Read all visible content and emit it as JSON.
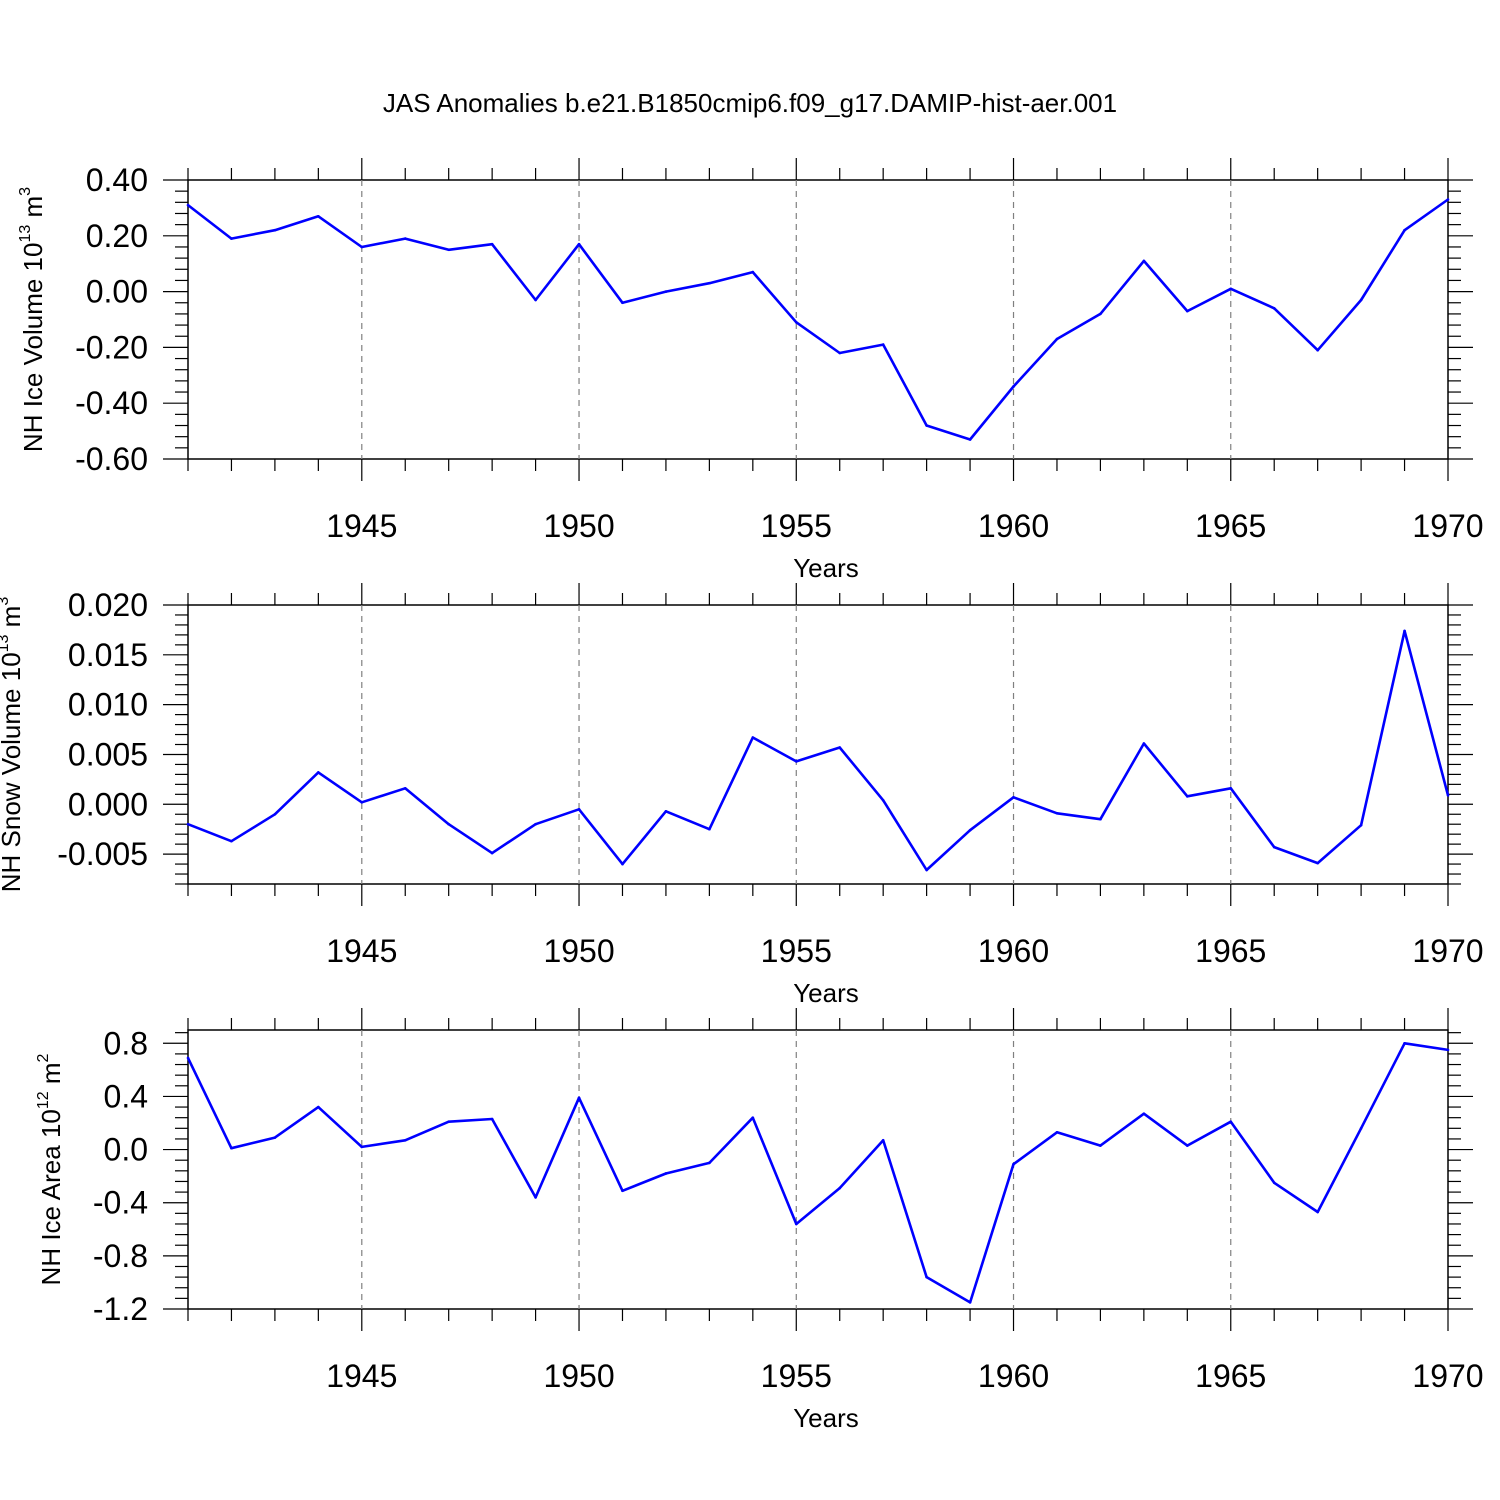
{
  "title": "JAS Anomalies b.e21.B1850cmip6.f09_g17.DAMIP-hist-aer.001",
  "colors": {
    "series": "#0000ff",
    "axes": "#000000",
    "grid": "#808080"
  },
  "chart_data": [
    {
      "type": "line",
      "name": "ice-volume",
      "title": "JAS Anomalies b.e21.B1850cmip6.f09_g17.DAMIP-hist-aer.001",
      "ylabel": "NH Ice Volume 10",
      "ylabel_sup": "13",
      "ylabel_unit": "m",
      "ylabel_unit_sup": "3",
      "xlabel": "Years",
      "xlim": [
        1941,
        1970
      ],
      "ylim": [
        -0.6,
        0.4
      ],
      "xticks": [
        1945,
        1950,
        1955,
        1960,
        1965,
        1970
      ],
      "xtick_labels": [
        "1945",
        "1950",
        "1955",
        "1960",
        "1965",
        "1970"
      ],
      "yticks": [
        0.4,
        0.2,
        0.0,
        -0.2,
        -0.4,
        -0.6
      ],
      "ytick_labels": [
        "0.40",
        "0.20",
        "0.00",
        "-0.20",
        "-0.40",
        "-0.60"
      ],
      "grid": "vertical dashed at major x ticks",
      "x": [
        1941,
        1942,
        1943,
        1944,
        1945,
        1946,
        1947,
        1948,
        1949,
        1950,
        1951,
        1952,
        1953,
        1954,
        1955,
        1956,
        1957,
        1958,
        1959,
        1960,
        1961,
        1962,
        1963,
        1964,
        1965,
        1966,
        1967,
        1968,
        1969,
        1970
      ],
      "values": [
        0.31,
        0.19,
        0.22,
        0.27,
        0.16,
        0.19,
        0.15,
        0.17,
        -0.03,
        0.17,
        -0.04,
        0.0,
        0.03,
        0.07,
        -0.11,
        -0.22,
        -0.19,
        -0.48,
        -0.53,
        -0.34,
        -0.17,
        -0.08,
        0.11,
        -0.07,
        0.01,
        -0.06,
        -0.21,
        -0.03,
        0.22,
        0.33
      ]
    },
    {
      "type": "line",
      "name": "snow-volume",
      "ylabel": "NH Snow Volume 10",
      "ylabel_sup": "13",
      "ylabel_unit": "m",
      "ylabel_unit_sup": "3",
      "xlabel": "Years",
      "xlim": [
        1941,
        1970
      ],
      "ylim": [
        -0.008,
        0.02
      ],
      "xticks": [
        1945,
        1950,
        1955,
        1960,
        1965,
        1970
      ],
      "xtick_labels": [
        "1945",
        "1950",
        "1955",
        "1960",
        "1965",
        "1970"
      ],
      "yticks": [
        0.02,
        0.015,
        0.01,
        0.005,
        0.0,
        -0.005
      ],
      "ytick_labels": [
        "0.020",
        "0.015",
        "0.010",
        "0.005",
        "0.000",
        "-0.005"
      ],
      "grid": "vertical dashed at major x ticks",
      "x": [
        1941,
        1942,
        1943,
        1944,
        1945,
        1946,
        1947,
        1948,
        1949,
        1950,
        1951,
        1952,
        1953,
        1954,
        1955,
        1956,
        1957,
        1958,
        1959,
        1960,
        1961,
        1962,
        1963,
        1964,
        1965,
        1966,
        1967,
        1968,
        1969,
        1970
      ],
      "values": [
        -0.002,
        -0.0037,
        -0.001,
        0.0032,
        0.0002,
        0.0016,
        -0.002,
        -0.0049,
        -0.002,
        -0.0005,
        -0.006,
        -0.0007,
        -0.0025,
        0.0067,
        0.0043,
        0.0057,
        0.0004,
        -0.0066,
        -0.0026,
        0.0007,
        -0.0009,
        -0.0015,
        0.0061,
        0.0008,
        0.0016,
        -0.0043,
        -0.0059,
        -0.0021,
        0.0174,
        0.0009
      ]
    },
    {
      "type": "line",
      "name": "ice-area",
      "ylabel": "NH Ice Area 10",
      "ylabel_sup": "12",
      "ylabel_unit": "m",
      "ylabel_unit_sup": "2",
      "xlabel": "Years",
      "xlim": [
        1941,
        1970
      ],
      "ylim": [
        -1.2,
        0.9
      ],
      "xticks": [
        1945,
        1950,
        1955,
        1960,
        1965,
        1970
      ],
      "xtick_labels": [
        "1945",
        "1950",
        "1955",
        "1960",
        "1965",
        "1970"
      ],
      "yticks": [
        0.8,
        0.4,
        0.0,
        -0.4,
        -0.8,
        -1.2
      ],
      "ytick_labels": [
        "0.8",
        "0.4",
        "0.0",
        "-0.4",
        "-0.8",
        "-1.2"
      ],
      "grid": "vertical dashed at major x ticks",
      "x": [
        1941,
        1942,
        1943,
        1944,
        1945,
        1946,
        1947,
        1948,
        1949,
        1950,
        1951,
        1952,
        1953,
        1954,
        1955,
        1956,
        1957,
        1958,
        1959,
        1960,
        1961,
        1962,
        1963,
        1964,
        1965,
        1966,
        1967,
        1968,
        1969,
        1970
      ],
      "values": [
        0.69,
        0.01,
        0.09,
        0.32,
        0.02,
        0.07,
        0.21,
        0.23,
        -0.36,
        0.39,
        -0.31,
        -0.18,
        -0.1,
        0.24,
        -0.56,
        -0.29,
        0.07,
        -0.96,
        -1.15,
        -0.11,
        0.13,
        0.03,
        0.27,
        0.03,
        0.21,
        -0.25,
        -0.47,
        0.16,
        0.8,
        0.75
      ]
    }
  ]
}
